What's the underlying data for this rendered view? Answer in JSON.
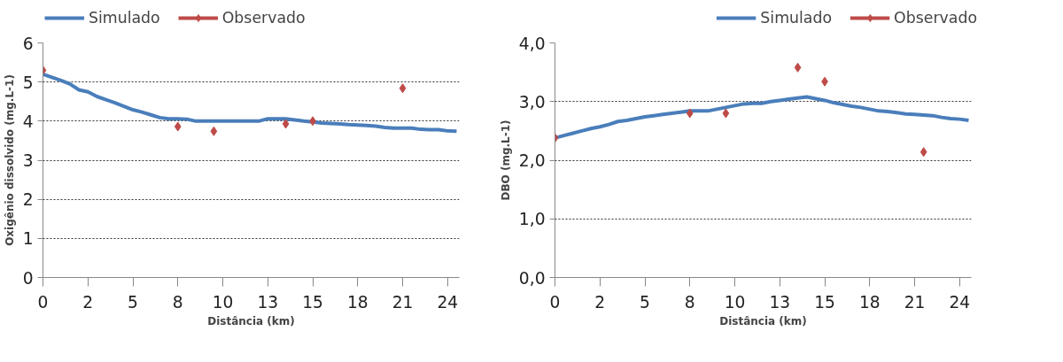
{
  "chart_data": [
    {
      "type": "line",
      "xlabel": "Distância (km)",
      "ylabel": "Oxigênio dissolvido (mg.L-1)",
      "categories": [
        "0",
        null,
        null,
        null,
        null,
        "2",
        null,
        null,
        null,
        null,
        "5",
        null,
        null,
        null,
        null,
        "8",
        null,
        null,
        null,
        null,
        "10",
        null,
        null,
        null,
        null,
        "13",
        null,
        null,
        null,
        null,
        "15",
        null,
        null,
        null,
        null,
        "18",
        null,
        null,
        null,
        null,
        "21",
        null,
        null,
        null,
        null,
        "24",
        null
      ],
      "ylim": [
        0,
        6
      ],
      "yticks": [
        0,
        1,
        2,
        3,
        4,
        5,
        6
      ],
      "grid": "y",
      "legend": "top left",
      "series": [
        {
          "name": "Simulado",
          "color": "#4a7ebb",
          "marker": "none",
          "values": [
            5.2,
            5.12,
            5.04,
            4.95,
            4.8,
            4.75,
            4.63,
            4.55,
            4.47,
            4.38,
            4.29,
            4.23,
            4.16,
            4.09,
            4.06,
            4.06,
            4.05,
            4.0,
            4.0,
            4.0,
            4.0,
            4.0,
            4.0,
            4.0,
            4.0,
            4.06,
            4.06,
            4.06,
            4.03,
            4.0,
            3.98,
            3.95,
            3.94,
            3.93,
            3.91,
            3.9,
            3.89,
            3.87,
            3.84,
            3.82,
            3.82,
            3.82,
            3.79,
            3.78,
            3.78,
            3.75,
            3.74
          ]
        },
        {
          "name": "Observado",
          "type": "scatter",
          "color": "#be4b48",
          "marker": "diamond",
          "values": [
            5.3,
            null,
            null,
            null,
            null,
            null,
            null,
            null,
            null,
            null,
            null,
            null,
            null,
            null,
            null,
            3.86,
            null,
            null,
            null,
            3.74,
            null,
            null,
            null,
            null,
            null,
            null,
            null,
            3.93,
            null,
            null,
            4.0,
            null,
            null,
            null,
            null,
            null,
            null,
            null,
            null,
            null,
            4.84,
            null,
            null,
            null,
            null,
            null,
            null
          ]
        }
      ]
    },
    {
      "type": "line",
      "xlabel": "Distância (km)",
      "ylabel": "DBO (mg.L-1)",
      "categories": [
        "0",
        null,
        null,
        null,
        null,
        "2",
        null,
        null,
        null,
        null,
        "5",
        null,
        null,
        null,
        null,
        "8",
        null,
        null,
        null,
        null,
        "10",
        null,
        null,
        null,
        null,
        "13",
        null,
        null,
        null,
        null,
        "15",
        null,
        null,
        null,
        null,
        "18",
        null,
        null,
        null,
        null,
        "21",
        null,
        null,
        null,
        null,
        "24",
        null
      ],
      "ylim": [
        0,
        4
      ],
      "yticks": [
        {
          "value": 0,
          "label": "0,0"
        },
        {
          "value": 1,
          "label": "1,0"
        },
        {
          "value": 2,
          "label": "2,0"
        },
        {
          "value": 3,
          "label": "3,0"
        },
        {
          "value": 4,
          "label": "4,0"
        }
      ],
      "grid": "y",
      "legend": "top right",
      "series": [
        {
          "name": "Simulado",
          "color": "#4a7ebb",
          "marker": "none",
          "values": [
            2.38,
            2.42,
            2.46,
            2.5,
            2.54,
            2.57,
            2.61,
            2.66,
            2.68,
            2.71,
            2.74,
            2.76,
            2.78,
            2.8,
            2.82,
            2.84,
            2.84,
            2.84,
            2.87,
            2.9,
            2.93,
            2.96,
            2.97,
            2.97,
            3.0,
            3.02,
            3.04,
            3.06,
            3.08,
            3.05,
            3.02,
            2.98,
            2.95,
            2.92,
            2.9,
            2.87,
            2.84,
            2.83,
            2.81,
            2.79,
            2.78,
            2.77,
            2.76,
            2.73,
            2.71,
            2.7,
            2.68
          ]
        },
        {
          "name": "Observado",
          "type": "scatter",
          "color": "#be4b48",
          "marker": "diamond",
          "values": [
            2.38,
            null,
            null,
            null,
            null,
            null,
            null,
            null,
            null,
            null,
            null,
            null,
            null,
            null,
            null,
            2.8,
            null,
            null,
            null,
            2.8,
            null,
            null,
            null,
            null,
            null,
            null,
            null,
            3.58,
            null,
            null,
            3.34,
            null,
            null,
            null,
            null,
            null,
            null,
            null,
            null,
            null,
            null,
            2.14,
            null,
            null,
            null,
            null,
            null
          ]
        }
      ]
    }
  ]
}
